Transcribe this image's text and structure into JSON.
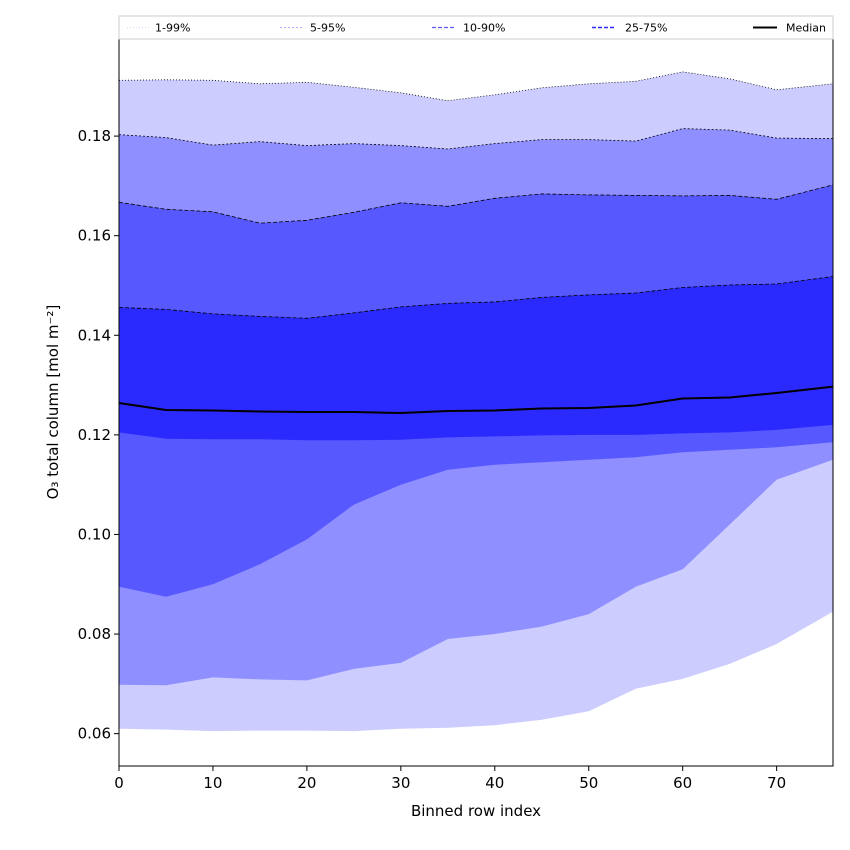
{
  "chart_data": {
    "type": "area",
    "xlabel": "Binned row index",
    "ylabel": "O₃ total column [mol m⁻²]",
    "xlim": [
      0,
      76
    ],
    "ylim": [
      0.0535,
      0.1995
    ],
    "xticks": [
      0,
      10,
      20,
      30,
      40,
      50,
      60,
      70
    ],
    "yticks": [
      0.06,
      0.08,
      0.1,
      0.12,
      0.14,
      0.16,
      0.18
    ],
    "ytick_labels": [
      "0.06",
      "0.08",
      "0.10",
      "0.12",
      "0.14",
      "0.16",
      "0.18"
    ],
    "legend_position": "top",
    "legend": [
      {
        "key": "p1_99",
        "label": "1-99%",
        "color": "#ccccff"
      },
      {
        "key": "p5_95",
        "label": "5-95%",
        "color": "#8f8fff"
      },
      {
        "key": "p10_90",
        "label": "10-90%",
        "color": "#5858ff"
      },
      {
        "key": "p25_75",
        "label": "25-75%",
        "color": "#2a2aff"
      },
      {
        "key": "median",
        "label": "Median",
        "color": "#000000"
      }
    ],
    "x": [
      0,
      5,
      10,
      15,
      20,
      25,
      30,
      35,
      40,
      45,
      50,
      55,
      60,
      65,
      70,
      76
    ],
    "bands": [
      {
        "name": "1-99%",
        "color": "#ccccff",
        "lower": [
          0.061,
          0.0608,
          0.0605,
          0.0606,
          0.0606,
          0.0605,
          0.061,
          0.0612,
          0.0617,
          0.0628,
          0.0645,
          0.069,
          0.071,
          0.074,
          0.078,
          0.0845
        ],
        "upper": [
          0.1912,
          0.1913,
          0.1912,
          0.1905,
          0.1908,
          0.1898,
          0.1887,
          0.1871,
          0.1883,
          0.1897,
          0.1905,
          0.191,
          0.1929,
          0.1915,
          0.1893,
          0.1905
        ]
      },
      {
        "name": "5-95%",
        "color": "#8f8fff",
        "lower": [
          0.0698,
          0.0697,
          0.0713,
          0.0709,
          0.0707,
          0.073,
          0.0742,
          0.079,
          0.08,
          0.0815,
          0.084,
          0.0895,
          0.093,
          0.102,
          0.111,
          0.115
        ],
        "upper": [
          0.1803,
          0.1797,
          0.1782,
          0.1789,
          0.1781,
          0.1785,
          0.1781,
          0.1774,
          0.1785,
          0.1793,
          0.1793,
          0.179,
          0.1815,
          0.1812,
          0.1796,
          0.1795
        ]
      },
      {
        "name": "10-90%",
        "color": "#5858ff",
        "lower": [
          0.0895,
          0.0875,
          0.09,
          0.094,
          0.099,
          0.106,
          0.11,
          0.113,
          0.114,
          0.1145,
          0.115,
          0.1155,
          0.1165,
          0.117,
          0.1175,
          0.1185
        ],
        "upper": [
          0.1667,
          0.1653,
          0.1648,
          0.1625,
          0.1631,
          0.1647,
          0.1666,
          0.1659,
          0.1675,
          0.1684,
          0.1682,
          0.1681,
          0.168,
          0.1681,
          0.1673,
          0.1702
        ]
      },
      {
        "name": "25-75%",
        "color": "#2a2aff",
        "lower": [
          0.1205,
          0.1192,
          0.1191,
          0.1191,
          0.1189,
          0.1189,
          0.119,
          0.1195,
          0.1197,
          0.1199,
          0.12,
          0.12,
          0.1203,
          0.1205,
          0.121,
          0.122
        ],
        "upper": [
          0.1456,
          0.1452,
          0.1443,
          0.1438,
          0.1434,
          0.1445,
          0.1457,
          0.1464,
          0.1467,
          0.1476,
          0.1481,
          0.1485,
          0.1496,
          0.1501,
          0.1503,
          0.1518
        ]
      }
    ],
    "median": {
      "name": "Median",
      "color": "#000000",
      "values": [
        0.1264,
        0.125,
        0.1249,
        0.1247,
        0.1246,
        0.1246,
        0.1244,
        0.1248,
        0.1249,
        0.1253,
        0.1254,
        0.1259,
        0.1273,
        0.1275,
        0.1284,
        0.1297
      ]
    }
  }
}
